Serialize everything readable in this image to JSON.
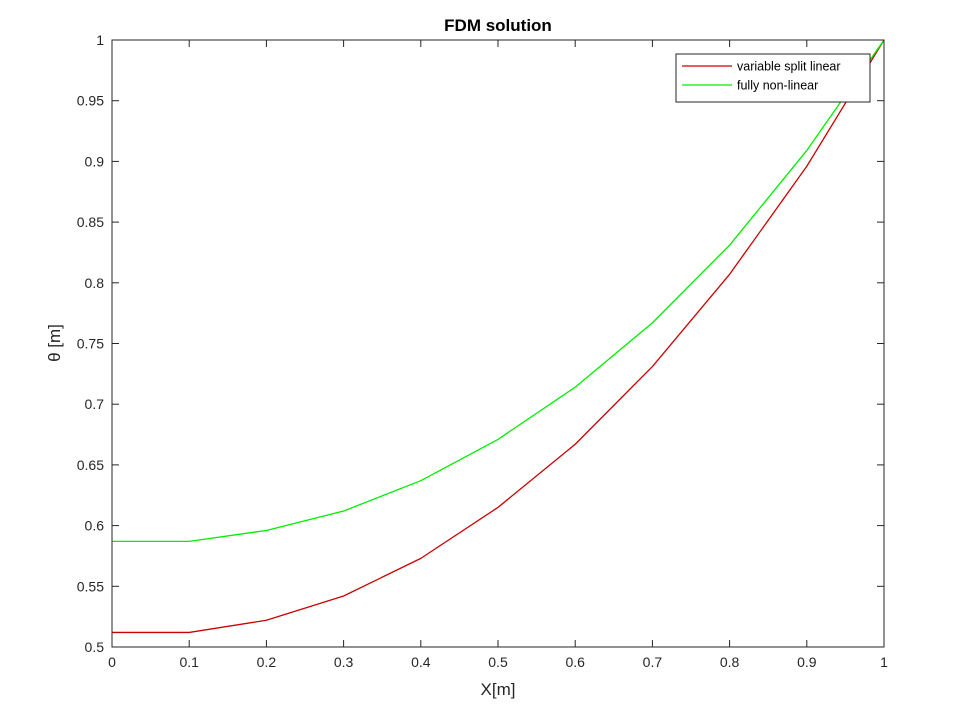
{
  "chart_data": {
    "type": "line",
    "title": "FDM solution",
    "xlabel": "X[m]",
    "ylabel": "θ  [m]",
    "xlim": [
      0,
      1
    ],
    "ylim": [
      0.5,
      1
    ],
    "xticks": [
      "0",
      "0.1",
      "0.2",
      "0.3",
      "0.4",
      "0.5",
      "0.6",
      "0.7",
      "0.8",
      "0.9",
      "1"
    ],
    "yticks": [
      "0.5",
      "0.55",
      "0.6",
      "0.65",
      "0.7",
      "0.75",
      "0.8",
      "0.85",
      "0.9",
      "0.95",
      "1"
    ],
    "grid": false,
    "legend_position": "top-right",
    "x": [
      0,
      0.1,
      0.2,
      0.3,
      0.4,
      0.5,
      0.6,
      0.7,
      0.8,
      0.9,
      1
    ],
    "series": [
      {
        "name": "variable split linear",
        "color": "#cc0000",
        "values": [
          0.512,
          0.512,
          0.522,
          0.542,
          0.573,
          0.615,
          0.667,
          0.731,
          0.807,
          0.896,
          1.0
        ]
      },
      {
        "name": "fully non-linear",
        "color": "#00ee00",
        "values": [
          0.587,
          0.587,
          0.596,
          0.612,
          0.637,
          0.671,
          0.714,
          0.767,
          0.831,
          0.909,
          1.0
        ]
      }
    ]
  }
}
